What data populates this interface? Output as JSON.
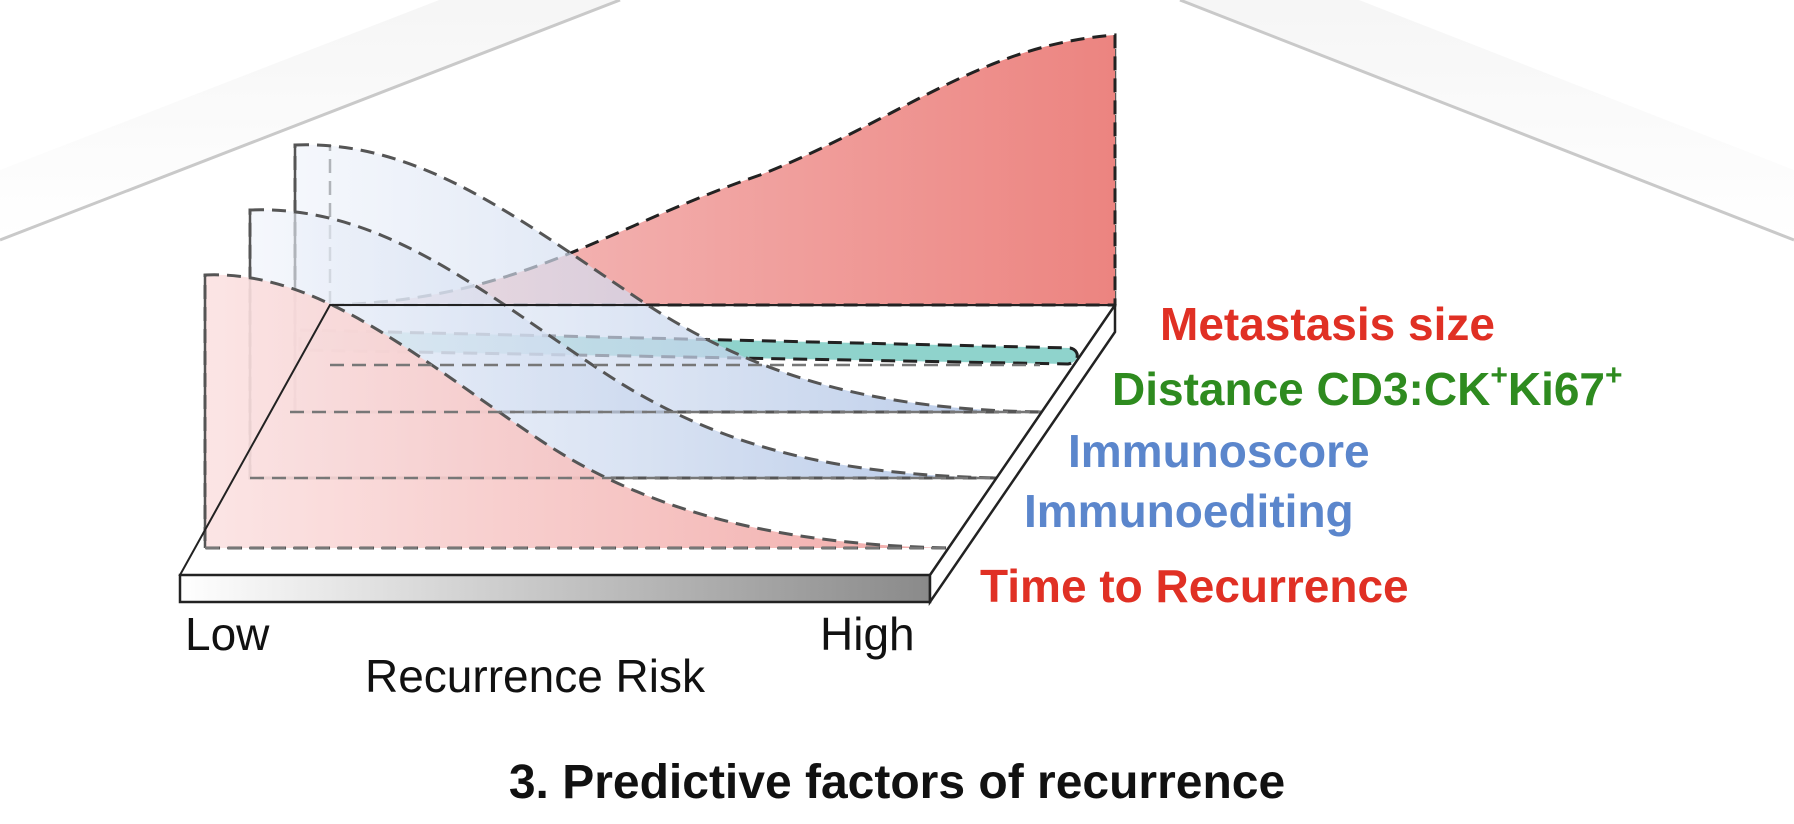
{
  "axis": {
    "low_label": "Low",
    "high_label": "High",
    "title": "Recurrence Risk"
  },
  "factors": [
    {
      "id": "metastasis",
      "label": "Metastasis size",
      "color": "#e03024"
    },
    {
      "id": "distance",
      "label_main": "Distance CD3:CK",
      "sup1": "+",
      "label_ki": "Ki67",
      "sup2": "+",
      "color": "#2e8b1f"
    },
    {
      "id": "immunoscore",
      "label": "Immunoscore",
      "color": "#5b86cc"
    },
    {
      "id": "immunoediting",
      "label": "Immunoediting",
      "color": "#5b86cc"
    },
    {
      "id": "time",
      "label": "Time to Recurrence",
      "color": "#e03024"
    }
  ],
  "caption": "3. Predictive factors of recurrence",
  "colors": {
    "red_fill": "#ec8a86",
    "blue_fill": "#b5c8e6",
    "teal_fill": "#8fd3cc",
    "outline": "#333333"
  }
}
